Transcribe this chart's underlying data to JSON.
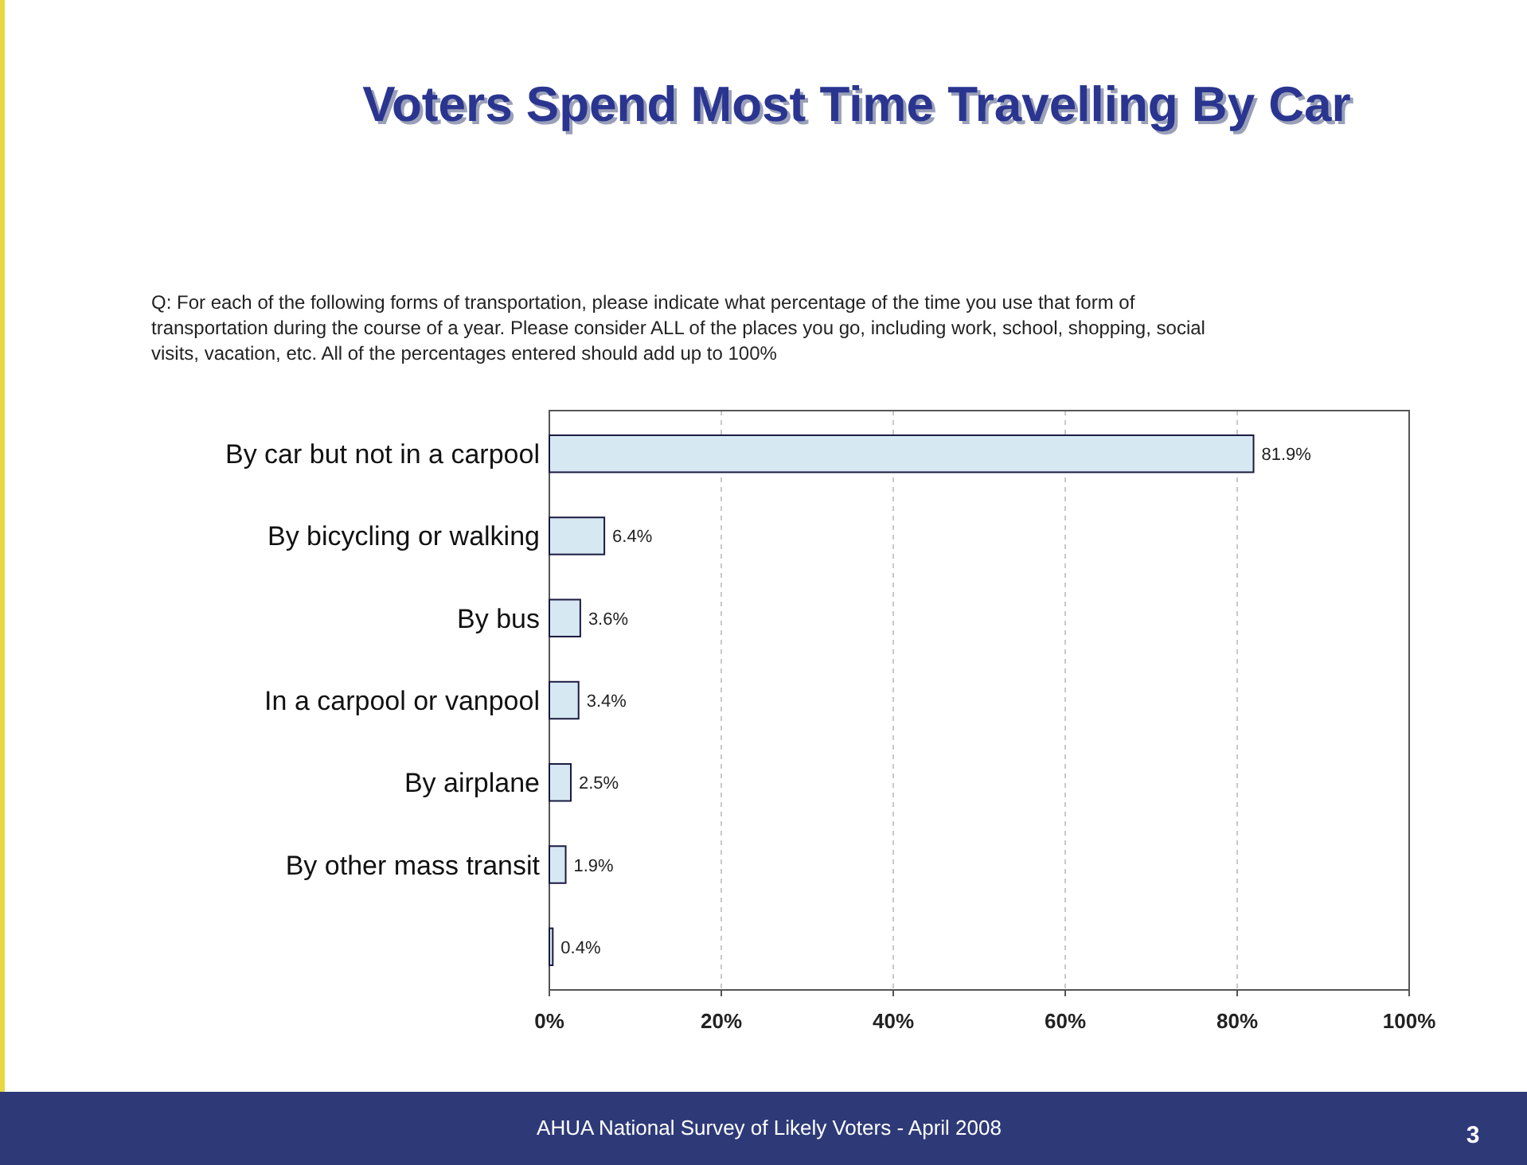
{
  "chart_data": {
    "type": "bar",
    "orientation": "horizontal",
    "title": "Voters Spend Most Time Travelling By Car",
    "subtitle": "Q: For each of the following forms of transportation, please indicate what percentage of the time you use that form of transportation during the course of a year.  Please consider ALL of the places you go, including work, school, shopping, social visits, vacation, etc.  All of the percentages entered should add up to 100%",
    "categories": [
      "By car but not in a carpool",
      "By bicycling or walking",
      "By bus",
      "In a carpool or vanpool",
      "By airplane",
      "By other mass transit",
      null
    ],
    "values": [
      81.9,
      6.4,
      3.6,
      3.4,
      2.5,
      1.9,
      0.4
    ],
    "value_labels": [
      "81.9%",
      "6.4%",
      "3.6%",
      "3.4%",
      "2.5%",
      "1.9%",
      "0.4%"
    ],
    "color": "#d6e8f2",
    "xlim": [
      0,
      100
    ],
    "xticks": [
      {
        "value": 0,
        "label": "0%"
      },
      {
        "value": 20,
        "label": "20%"
      },
      {
        "value": 40,
        "label": "40%"
      },
      {
        "value": 60,
        "label": "60%"
      },
      {
        "value": 80,
        "label": "80%"
      },
      {
        "value": 100,
        "label": "100%"
      }
    ],
    "grid": "x",
    "annotations": [
      "AHUA National Survey of Likely Voters - April 2008",
      "3"
    ]
  }
}
